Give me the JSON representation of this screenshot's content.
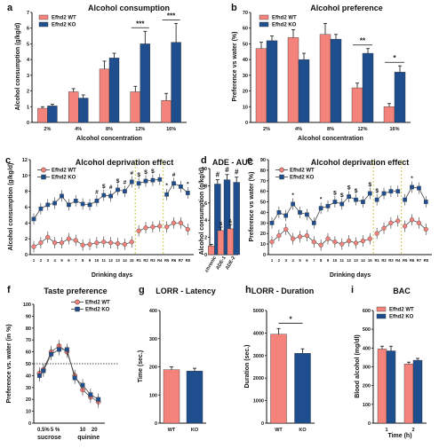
{
  "colors": {
    "wt": "#f4837c",
    "ko": "#1f4e8f"
  },
  "legend": {
    "wt": "Efhd2 WT",
    "ko": "Efhd2 KO"
  },
  "chart_data": [
    {
      "id": "a",
      "panel_label": "a",
      "type": "bar",
      "title": "Alcohol consumption",
      "xlabel": "Alcohol concentration",
      "ylabel": "Alcohol consumption (g/kg/d)",
      "ylim": [
        0,
        7
      ],
      "yticks": [
        0,
        1,
        2,
        3,
        4,
        5,
        6,
        7
      ],
      "categories": [
        "2%",
        "4%",
        "8%",
        "12%",
        "16%"
      ],
      "series": [
        {
          "name": "Efhd2 WT",
          "values": [
            0.9,
            1.95,
            3.4,
            1.95,
            1.4
          ],
          "errors": [
            0.1,
            0.2,
            0.5,
            0.35,
            0.45
          ]
        },
        {
          "name": "Efhd2 KO",
          "values": [
            1.05,
            1.55,
            4.1,
            5.0,
            5.1
          ],
          "errors": [
            0.1,
            0.2,
            0.3,
            0.8,
            1.2
          ]
        }
      ],
      "significance": [
        {
          "category": "12%",
          "label": "***"
        },
        {
          "category": "16%",
          "label": "***"
        }
      ],
      "legend_position": "top-left"
    },
    {
      "id": "b",
      "panel_label": "b",
      "type": "bar",
      "title": "Alcohol preference",
      "xlabel": "Alcohol concentration",
      "ylabel": "Preference vs water (%)",
      "ylim": [
        0,
        70
      ],
      "yticks": [
        0,
        10,
        20,
        30,
        40,
        50,
        60,
        70
      ],
      "categories": [
        "2%",
        "4%",
        "8%",
        "12%",
        "16%"
      ],
      "series": [
        {
          "name": "Efhd2 WT",
          "values": [
            47,
            54,
            56,
            22,
            10
          ],
          "errors": [
            4,
            5,
            7,
            3,
            2
          ]
        },
        {
          "name": "Efhd2 KO",
          "values": [
            52,
            40,
            53,
            44,
            32
          ],
          "errors": [
            3,
            4,
            3,
            3,
            4
          ]
        }
      ],
      "significance": [
        {
          "category": "12%",
          "label": "**"
        },
        {
          "category": "16%",
          "label": "*"
        }
      ],
      "legend_position": "top-left"
    },
    {
      "id": "c",
      "panel_label": "c",
      "type": "line",
      "title": "Alcohol deprivation effect",
      "xlabel": "Drinking days",
      "ylabel": "Alcohol consumption (g/kg/d)",
      "ylim": [
        0,
        12
      ],
      "yticks": [
        0,
        2,
        4,
        6,
        8,
        10,
        12
      ],
      "xtick_labels": [
        "1",
        "2",
        "3",
        "4",
        "5",
        "6",
        "7",
        "8",
        "9",
        "10",
        "11",
        "12",
        "13",
        "14",
        "15",
        "R1",
        "R2",
        "R3",
        "R4",
        "R5",
        "R6",
        "R7",
        "R8"
      ],
      "x": [
        1,
        2,
        3,
        4,
        5,
        6,
        7,
        8,
        9,
        10,
        11,
        12,
        13,
        14,
        15,
        16,
        17,
        18,
        19,
        20,
        21,
        22,
        23
      ],
      "series": [
        {
          "name": "Efhd2 WT",
          "values": [
            1.0,
            1.5,
            2.2,
            1.5,
            1.5,
            2.0,
            1.8,
            1.2,
            1.3,
            1.5,
            1.6,
            1.5,
            1.4,
            1.3,
            1.6,
            3.0,
            3.4,
            3.5,
            3.6,
            3.5,
            4.0,
            4.0,
            3.2
          ]
        },
        {
          "name": "Efhd2 KO",
          "values": [
            4.5,
            5.8,
            6.3,
            6.5,
            7.4,
            6.3,
            6.8,
            6.4,
            6.3,
            6.8,
            7.5,
            7.4,
            8.2,
            8.0,
            9.2,
            9.0,
            9.3,
            9.4,
            9.5,
            7.6,
            9.0,
            8.6,
            7.8
          ]
        }
      ],
      "significance_marks": [
        {
          "x": 10,
          "label": "#"
        },
        {
          "x": 11,
          "label": "$"
        },
        {
          "x": 12,
          "label": "#"
        },
        {
          "x": 13,
          "label": "$"
        },
        {
          "x": 14,
          "label": "#"
        },
        {
          "x": 15,
          "label": "#"
        },
        {
          "x": 16,
          "label": "$"
        },
        {
          "x": 17,
          "label": "$"
        },
        {
          "x": 18,
          "label": "$"
        },
        {
          "x": 20,
          "label": "*"
        },
        {
          "x": 21,
          "label": "#"
        },
        {
          "x": 23,
          "label": "*"
        }
      ],
      "dividers_after": [
        15,
        19
      ],
      "legend_position": "top-left"
    },
    {
      "id": "d",
      "panel_label": "d",
      "type": "bar",
      "title": "ADE - AUC",
      "xlabel": "",
      "ylabel": "Alcohol consumption (g/kg/d)",
      "ylim": [
        0,
        10
      ],
      "yticks": [
        0,
        2,
        4,
        6,
        8,
        10
      ],
      "categories": [
        "chronic",
        "ADE-1",
        "ADE-2"
      ],
      "series": [
        {
          "name": "Efhd2 WT",
          "values": [
            1.0,
            2.8,
            3.0
          ],
          "errors": [
            0.2,
            0.4,
            0.5
          ]
        },
        {
          "name": "Efhd2 KO",
          "values": [
            8.2,
            8.7,
            8.4
          ],
          "errors": [
            0.5,
            0.6,
            0.6
          ]
        }
      ],
      "significance": [
        {
          "category": "chronic",
          "label": "#"
        },
        {
          "category": "ADE-1",
          "label": "#"
        },
        {
          "category": "ADE-2",
          "label": "#"
        },
        {
          "category": "ADE-1",
          "label": "$"
        },
        {
          "category": "ADE-2",
          "label": "&"
        }
      ]
    },
    {
      "id": "e",
      "panel_label": "e",
      "type": "line",
      "title": "Alcohol deprivation effect",
      "xlabel": "Drinking days",
      "ylabel": "Preference vs water (%)",
      "ylim": [
        0,
        90
      ],
      "yticks": [
        0,
        10,
        20,
        30,
        40,
        50,
        60,
        70,
        80,
        90
      ],
      "xtick_labels": [
        "1",
        "2",
        "3",
        "4",
        "5",
        "6",
        "7",
        "8",
        "9",
        "10",
        "11",
        "12",
        "13",
        "14",
        "15",
        "R1",
        "R2",
        "R3",
        "R4",
        "R5",
        "R6",
        "R7",
        "R8"
      ],
      "x": [
        1,
        2,
        3,
        4,
        5,
        6,
        7,
        8,
        9,
        10,
        11,
        12,
        13,
        14,
        15,
        16,
        17,
        18,
        19,
        20,
        21,
        22,
        23
      ],
      "series": [
        {
          "name": "Efhd2 WT",
          "values": [
            12,
            18,
            24,
            15,
            17,
            18,
            12,
            9,
            15,
            12,
            10,
            13,
            11,
            13,
            15,
            20,
            25,
            30,
            32,
            27,
            33,
            30,
            24
          ]
        },
        {
          "name": "Efhd2 KO",
          "values": [
            30,
            40,
            37,
            48,
            40,
            38,
            30,
            44,
            46,
            50,
            48,
            55,
            52,
            50,
            58,
            52,
            58,
            60,
            60,
            52,
            64,
            63,
            50
          ]
        }
      ],
      "significance_marks": [
        {
          "x": 4,
          "label": "*"
        },
        {
          "x": 8,
          "label": "*"
        },
        {
          "x": 10,
          "label": "$"
        },
        {
          "x": 11,
          "label": "$"
        },
        {
          "x": 12,
          "label": "$"
        },
        {
          "x": 13,
          "label": "$"
        },
        {
          "x": 15,
          "label": "$"
        },
        {
          "x": 16,
          "label": "$"
        },
        {
          "x": 21,
          "label": "*"
        }
      ],
      "dividers_after": [
        15,
        19
      ],
      "legend_position": "top-left"
    },
    {
      "id": "f",
      "panel_label": "f",
      "type": "line",
      "title": "Taste preference",
      "xlabel": "",
      "ylabel": "Preference vs. water (in %)",
      "ylim": [
        0,
        100
      ],
      "yticks": [
        0,
        10,
        20,
        30,
        40,
        50,
        60,
        70,
        80,
        90,
        100
      ],
      "xtick_labels": [
        "0.5%",
        "5 %",
        "10",
        "20"
      ],
      "group_labels": [
        "sucrose",
        "quinine"
      ],
      "reference_line": 50,
      "series": [
        {
          "name": "Efhd2 WT",
          "x": [
            0.5,
            1,
            2,
            3,
            4,
            5,
            6,
            7,
            8
          ],
          "values": [
            42,
            45,
            60,
            65,
            60,
            40,
            28,
            22,
            18
          ]
        },
        {
          "name": "Efhd2 KO",
          "x": [
            0.5,
            1,
            2,
            3,
            4,
            5,
            6,
            7,
            8
          ],
          "values": [
            40,
            44,
            58,
            62,
            62,
            38,
            32,
            24,
            20
          ]
        }
      ],
      "legend_position": "top-right"
    },
    {
      "id": "g",
      "panel_label": "g",
      "type": "bar",
      "title": "LORR - Latency",
      "xlabel": "",
      "ylabel": "Time (sec.)",
      "ylim": [
        0,
        400
      ],
      "yticks": [
        0,
        100,
        200,
        300,
        400
      ],
      "categories": [
        "WT",
        "KO"
      ],
      "series": [
        {
          "name": "",
          "values": [
            190,
            185
          ],
          "errors": [
            10,
            10
          ],
          "colors": [
            "wt",
            "ko"
          ]
        }
      ]
    },
    {
      "id": "h",
      "panel_label": "h",
      "type": "bar",
      "title": "LORR - Duration",
      "xlabel": "",
      "ylabel": "Duration (sec.)",
      "ylim": [
        0,
        5000
      ],
      "yticks": [
        0,
        1000,
        2000,
        3000,
        4000,
        5000
      ],
      "categories": [
        "WT",
        "KO"
      ],
      "series": [
        {
          "name": "",
          "values": [
            3950,
            3100
          ],
          "errors": [
            250,
            200
          ],
          "colors": [
            "wt",
            "ko"
          ]
        }
      ],
      "significance_bracket": {
        "from": "WT",
        "to": "KO",
        "label": "*"
      }
    },
    {
      "id": "i",
      "panel_label": "i",
      "type": "bar",
      "title": "BAC",
      "xlabel": "Time (h)",
      "ylabel": "Blood alcohol (mg/dl)",
      "ylim": [
        0,
        600
      ],
      "yticks": [
        0,
        100,
        200,
        300,
        400,
        500,
        600
      ],
      "categories": [
        "1",
        "2"
      ],
      "series": [
        {
          "name": "Efhd2 WT",
          "values": [
            395,
            315
          ],
          "errors": [
            15,
            10
          ]
        },
        {
          "name": "Efhd2 KO",
          "values": [
            385,
            335
          ],
          "errors": [
            25,
            10
          ]
        }
      ],
      "legend_position": "top-right"
    }
  ]
}
